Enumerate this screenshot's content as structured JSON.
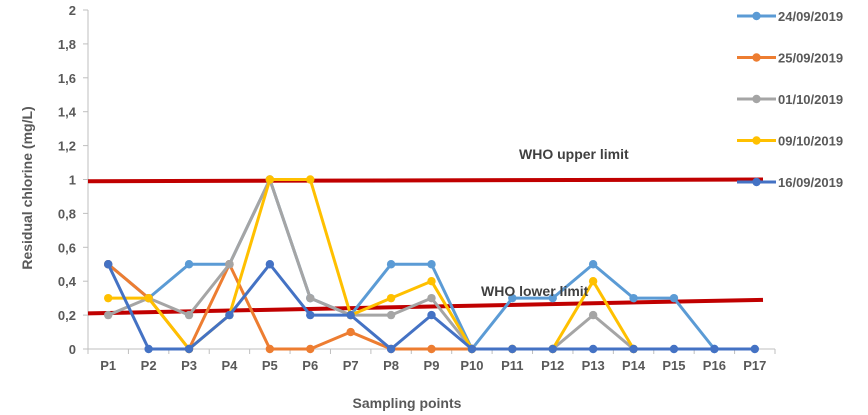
{
  "chart_data": {
    "type": "line",
    "xlabel": "Sampling points",
    "ylabel": "Residual chlorine (mg/L)",
    "ylim": [
      0,
      2
    ],
    "yticks": [
      "0",
      "0,2",
      "0,4",
      "0,6",
      "0,8",
      "1",
      "1,2",
      "1,4",
      "1,6",
      "1,8",
      "2"
    ],
    "categories": [
      "P1",
      "P2",
      "P3",
      "P4",
      "P5",
      "P6",
      "P7",
      "P8",
      "P9",
      "P10",
      "P11",
      "P12",
      "P13",
      "P14",
      "P15",
      "P16",
      "P17"
    ],
    "legend_position": "right",
    "series": [
      {
        "name": "24/09/2019",
        "color": "#5B9BD5",
        "values": [
          0.5,
          0.3,
          0.5,
          0.5,
          1,
          0.3,
          0.2,
          0.5,
          0.5,
          0,
          0.3,
          0.3,
          0.5,
          0.3,
          0.3,
          0,
          null
        ]
      },
      {
        "name": "25/09/2019",
        "color": "#ED7D31",
        "values": [
          0.5,
          0.3,
          0,
          0.5,
          0,
          0,
          0.1,
          0,
          0,
          0,
          null,
          null,
          null,
          null,
          null,
          null,
          null
        ]
      },
      {
        "name": "01/10/2019",
        "color": "#A5A5A5",
        "values": [
          0.2,
          0.3,
          0.2,
          0.5,
          1,
          0.3,
          0.2,
          0.2,
          0.3,
          0,
          0,
          0,
          0.2,
          0,
          null,
          null,
          null
        ]
      },
      {
        "name": "09/10/2019",
        "color": "#FFC000",
        "values": [
          0.3,
          0.3,
          0,
          0.2,
          1,
          1,
          0.2,
          0.3,
          0.4,
          0,
          0,
          0,
          0.4,
          0,
          null,
          null,
          null
        ]
      },
      {
        "name": "16/09/2019",
        "color": "#4472C4",
        "values": [
          0.5,
          0,
          0,
          0.2,
          0.5,
          0.2,
          0.2,
          0,
          0.2,
          0,
          0,
          0,
          0,
          0,
          0,
          0,
          0
        ]
      }
    ],
    "reference_lines": [
      {
        "label": "WHO upper limit",
        "color": "#C00000",
        "from": 0.99,
        "to": 1.0
      },
      {
        "label": "WHO lower limit",
        "color": "#C00000",
        "from": 0.21,
        "to": 0.29
      }
    ]
  }
}
